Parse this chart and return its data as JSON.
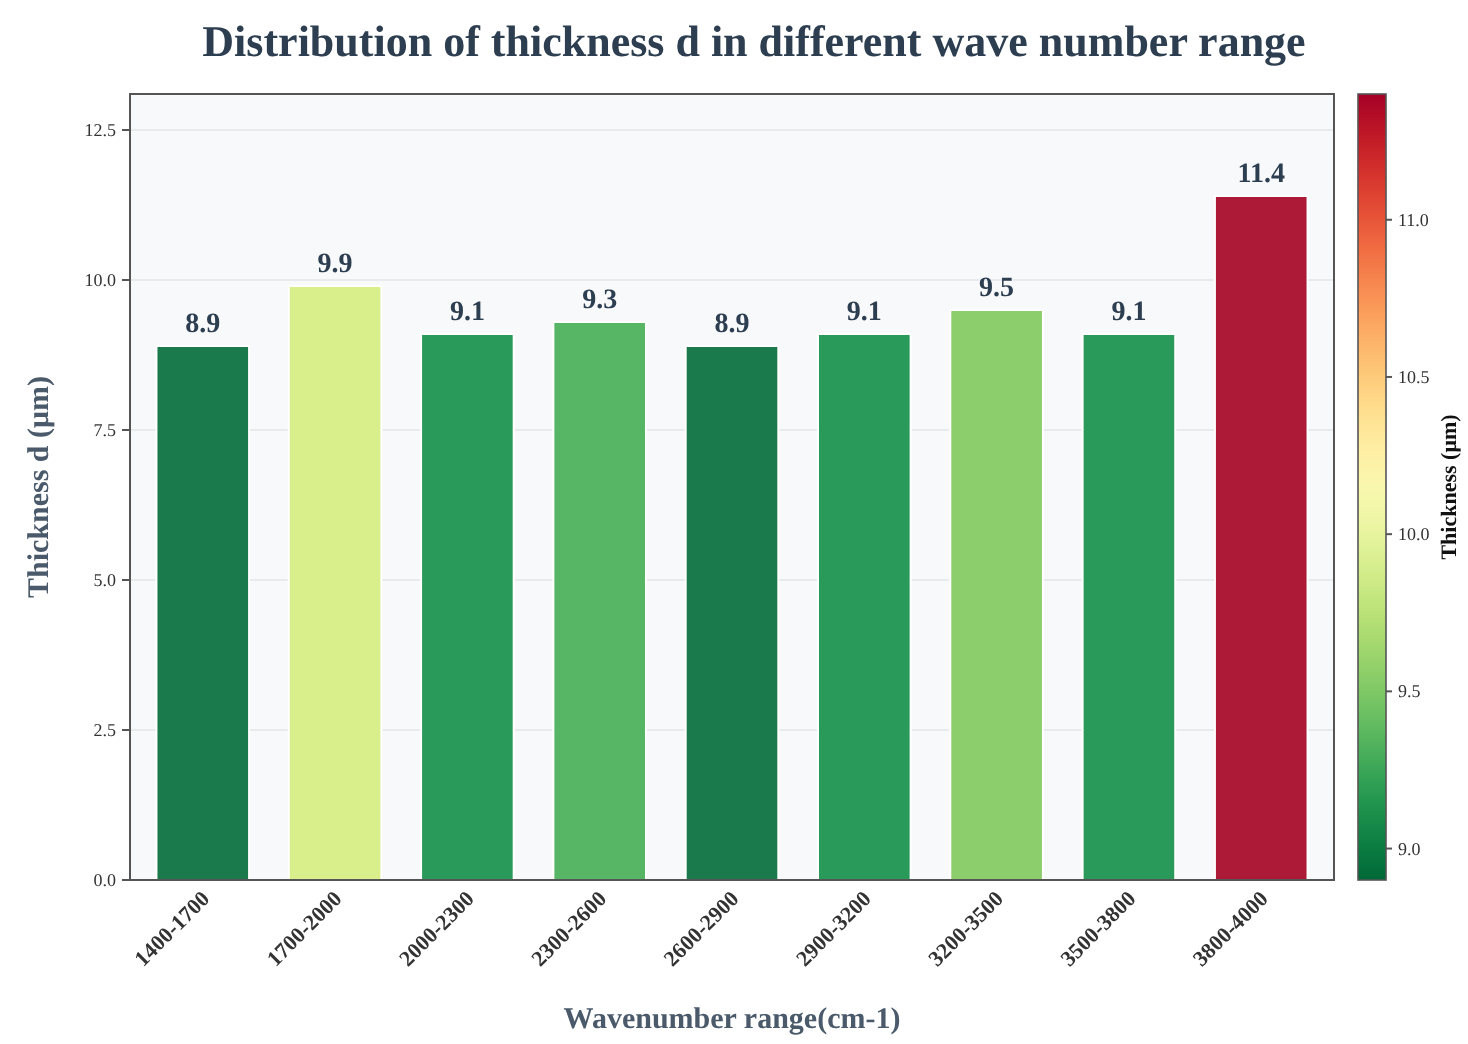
{
  "chart_data": {
    "type": "bar",
    "title": "Distribution of thickness d in different wave number range",
    "xlabel": "Wavenumber range(cm-1)",
    "ylabel": "Thickness d (μm)",
    "clabel": "Thickness (μm)",
    "categories": [
      "1400-1700",
      "1700-2000",
      "2000-2300",
      "2300-2600",
      "2600-2900",
      "2900-3200",
      "3200-3500",
      "3500-3800",
      "3800-4000"
    ],
    "values": [
      8.9,
      9.9,
      9.1,
      9.3,
      8.9,
      9.1,
      9.5,
      9.1,
      11.4
    ],
    "colors": [
      "#1a7a4b",
      "#d9ef8b",
      "#2a9a5a",
      "#57b566",
      "#1a7a4b",
      "#2a9a5a",
      "#8ccd6c",
      "#2a9a5a",
      "#ac1a38"
    ],
    "data_labels": true,
    "ylim": [
      0,
      13.1
    ],
    "yticks": [
      {
        "value": 0,
        "label": "0.0"
      },
      {
        "value": 2.5,
        "label": "2.5"
      },
      {
        "value": 5,
        "label": "5.0"
      },
      {
        "value": 7.5,
        "label": "7.5"
      },
      {
        "value": 10,
        "label": "10.0"
      },
      {
        "value": 12.5,
        "label": "12.5"
      }
    ],
    "clim": [
      8.9,
      11.4
    ],
    "cticks": [
      {
        "value": 9,
        "label": "9.0"
      },
      {
        "value": 9.5,
        "label": "9.5"
      },
      {
        "value": 10,
        "label": "10.0"
      },
      {
        "value": 10.5,
        "label": "10.5"
      },
      {
        "value": 11,
        "label": "11.0"
      }
    ],
    "grid": "y"
  }
}
